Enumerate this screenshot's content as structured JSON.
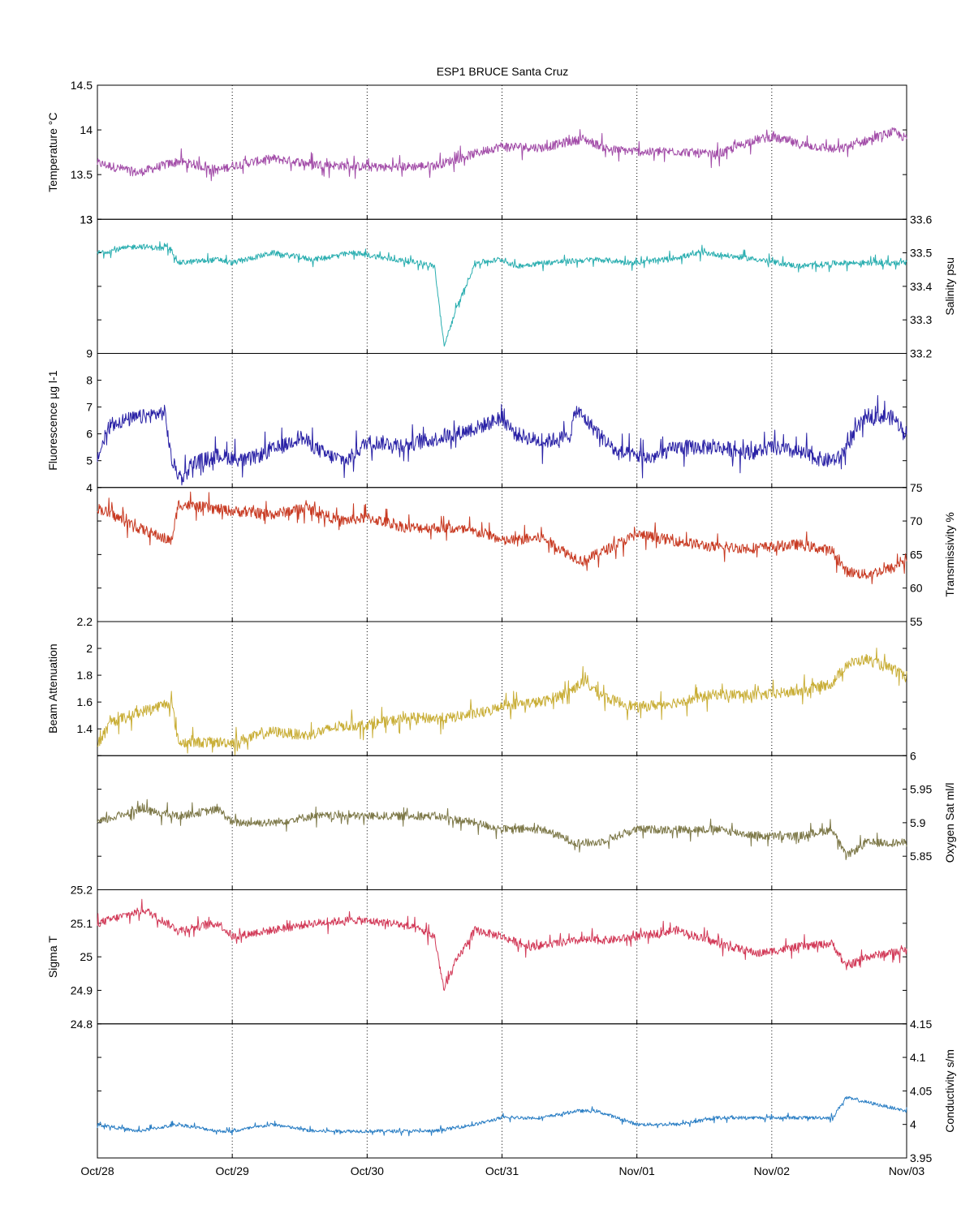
{
  "title": "ESP1 BRUCE Santa Cruz",
  "chart_data": [
    {
      "type": "line",
      "ylabel": "Temperature °C",
      "y_axis_side": "left",
      "ylim": [
        13,
        14.5
      ],
      "yticks": [
        13,
        13.5,
        14,
        14.5
      ],
      "ytick_labels": [
        "13",
        "13.5",
        "14",
        "14.5"
      ],
      "color": "#a24ca8",
      "noise": 0.05,
      "x": [
        0,
        0.3,
        0.6,
        0.9,
        1.0,
        1.3,
        1.6,
        1.8,
        2.1,
        2.5,
        2.9,
        3.0,
        3.3,
        3.6,
        3.8,
        4.1,
        4.3,
        4.6,
        4.85,
        5.0,
        5.2,
        5.5,
        5.9,
        6.0
      ],
      "values": [
        13.63,
        13.52,
        13.65,
        13.55,
        13.6,
        13.68,
        13.62,
        13.6,
        13.58,
        13.6,
        13.78,
        13.82,
        13.8,
        13.9,
        13.78,
        13.75,
        13.76,
        13.72,
        13.88,
        13.92,
        13.84,
        13.78,
        13.98,
        13.9
      ],
      "grid_x": true
    },
    {
      "type": "line",
      "ylabel": "Salinity psu",
      "y_axis_side": "right",
      "ylim": [
        33.2,
        33.6
      ],
      "yticks": [
        33.2,
        33.3,
        33.4,
        33.5,
        33.6
      ],
      "ytick_labels": [
        "33.2",
        "33.3",
        "33.4",
        "33.5",
        "33.6"
      ],
      "top_left_label": "13",
      "color": "#2aaeb0",
      "noise": 0.008,
      "x": [
        0,
        0.3,
        0.55,
        0.6,
        0.9,
        1.0,
        1.3,
        1.6,
        1.9,
        2.2,
        2.4,
        2.5,
        2.57,
        2.65,
        2.8,
        3.0,
        3.1,
        3.3,
        3.7,
        4.0,
        4.2,
        4.5,
        4.9,
        5.2,
        5.5,
        5.9,
        6.0
      ],
      "values": [
        33.5,
        33.52,
        33.51,
        33.47,
        33.48,
        33.47,
        33.5,
        33.48,
        33.5,
        33.48,
        33.47,
        33.46,
        33.22,
        33.32,
        33.47,
        33.48,
        33.46,
        33.47,
        33.48,
        33.47,
        33.48,
        33.5,
        33.48,
        33.46,
        33.47,
        33.47,
        33.47
      ],
      "grid_x": true
    },
    {
      "type": "line",
      "ylabel": "Fluorescence µg l-1",
      "y_axis_side": "left",
      "ylim": [
        4,
        9
      ],
      "yticks": [
        4,
        5,
        6,
        7,
        8
      ],
      "ytick_labels": [
        "4",
        "5",
        "6",
        "7",
        "8"
      ],
      "top_left_label": "9",
      "color": "#2a22a6",
      "noise": 0.28,
      "x": [
        0,
        0.1,
        0.3,
        0.5,
        0.55,
        0.62,
        0.7,
        0.9,
        1.1,
        1.4,
        1.5,
        1.7,
        1.85,
        2.0,
        2.3,
        2.5,
        2.8,
        3.0,
        3.1,
        3.3,
        3.5,
        3.55,
        3.7,
        3.85,
        4.1,
        4.3,
        4.6,
        4.85,
        5.0,
        5.2,
        5.4,
        5.5,
        5.7,
        5.9,
        6.0
      ],
      "values": [
        5.1,
        6.4,
        6.6,
        6.8,
        5.0,
        4.3,
        4.9,
        5.2,
        5.0,
        5.6,
        5.9,
        5.2,
        5.0,
        5.7,
        5.6,
        5.8,
        6.2,
        6.6,
        6.0,
        5.7,
        5.9,
        6.9,
        6.1,
        5.3,
        5.1,
        5.5,
        5.5,
        5.3,
        5.5,
        5.3,
        5.0,
        5.1,
        6.7,
        6.6,
        6.0
      ],
      "grid_x": true
    },
    {
      "type": "line",
      "ylabel": "Transmissivity %",
      "y_axis_side": "right",
      "ylim": [
        55,
        75
      ],
      "yticks": [
        55,
        60,
        65,
        70,
        75
      ],
      "ytick_labels": [
        "55",
        "60",
        "65",
        "70",
        "75"
      ],
      "color": "#c83a22",
      "noise": 0.8,
      "x": [
        0,
        0.3,
        0.55,
        0.6,
        1.0,
        1.3,
        1.55,
        1.8,
        2.0,
        2.3,
        2.6,
        2.9,
        3.0,
        3.3,
        3.5,
        3.6,
        3.8,
        4.0,
        4.3,
        4.6,
        4.9,
        5.2,
        5.45,
        5.55,
        5.7,
        5.9,
        6.0
      ],
      "values": [
        72,
        69,
        67,
        72.5,
        71.5,
        71,
        72,
        70,
        70.5,
        69,
        69,
        68,
        67,
        67.5,
        65,
        64,
        66,
        68,
        67,
        66,
        66,
        66.5,
        65.5,
        62.5,
        62,
        63,
        64.5
      ],
      "grid_x": true
    },
    {
      "type": "line",
      "ylabel": "Beam Attenuation",
      "y_axis_side": "left",
      "ylim": [
        1.2,
        2.2
      ],
      "yticks": [
        1.4,
        1.6,
        1.8,
        2.0
      ],
      "ytick_labels": [
        "1.4",
        "1.6",
        "1.8",
        "2"
      ],
      "top_left_label": "2.2",
      "color": "#c9ae37",
      "noise": 0.04,
      "x": [
        0,
        0.1,
        0.3,
        0.55,
        0.6,
        1.0,
        1.3,
        1.55,
        1.8,
        2.0,
        2.3,
        2.6,
        2.9,
        3.0,
        3.3,
        3.5,
        3.6,
        3.8,
        4.0,
        4.3,
        4.6,
        4.9,
        5.2,
        5.45,
        5.55,
        5.7,
        5.9,
        6.0
      ],
      "values": [
        1.28,
        1.45,
        1.52,
        1.6,
        1.3,
        1.3,
        1.38,
        1.35,
        1.42,
        1.43,
        1.48,
        1.48,
        1.53,
        1.58,
        1.6,
        1.68,
        1.75,
        1.62,
        1.56,
        1.6,
        1.66,
        1.65,
        1.68,
        1.74,
        1.88,
        1.92,
        1.84,
        1.78
      ],
      "grid_x": true
    },
    {
      "type": "line",
      "ylabel": "Oxygen Sat ml/l",
      "y_axis_side": "right",
      "ylim": [
        5.8,
        6.0
      ],
      "yticks": [
        5.85,
        5.9,
        5.95,
        6.0
      ],
      "ytick_labels": [
        "5.85",
        "5.9",
        "5.95",
        "6"
      ],
      "color": "#7d7848",
      "noise": 0.006,
      "x": [
        0,
        0.3,
        0.6,
        0.9,
        1.0,
        1.3,
        1.6,
        1.9,
        2.2,
        2.5,
        2.8,
        3.0,
        3.3,
        3.55,
        3.7,
        4.0,
        4.3,
        4.6,
        4.9,
        5.2,
        5.45,
        5.55,
        5.7,
        6.0
      ],
      "values": [
        5.9,
        5.92,
        5.91,
        5.92,
        5.9,
        5.9,
        5.91,
        5.91,
        5.91,
        5.91,
        5.9,
        5.89,
        5.89,
        5.87,
        5.87,
        5.89,
        5.89,
        5.89,
        5.88,
        5.88,
        5.89,
        5.85,
        5.87,
        5.87
      ],
      "grid_x": true
    },
    {
      "type": "line",
      "ylabel": "Sigma T",
      "y_axis_side": "left",
      "ylim": [
        24.8,
        25.2
      ],
      "yticks": [
        24.9,
        25.0,
        25.1
      ],
      "ytick_labels": [
        "24.9",
        "25",
        "25.1"
      ],
      "top_left_label": "25.2",
      "color": "#d23a58",
      "noise": 0.012,
      "x": [
        0,
        0.35,
        0.6,
        0.9,
        1.0,
        1.3,
        1.6,
        1.9,
        2.2,
        2.4,
        2.5,
        2.57,
        2.65,
        2.8,
        3.0,
        3.2,
        3.4,
        3.6,
        3.8,
        4.0,
        4.3,
        4.6,
        4.9,
        5.2,
        5.45,
        5.55,
        5.7,
        6.0
      ],
      "values": [
        25.1,
        25.14,
        25.08,
        25.1,
        25.06,
        25.08,
        25.1,
        25.11,
        25.1,
        25.08,
        25.06,
        24.9,
        24.98,
        25.08,
        25.06,
        25.03,
        25.04,
        25.05,
        25.05,
        25.06,
        25.08,
        25.04,
        25.01,
        25.03,
        25.04,
        24.97,
        25.0,
        25.02
      ],
      "grid_x": true
    },
    {
      "type": "line",
      "ylabel": "Conductivity s/m",
      "y_axis_side": "right",
      "ylim": [
        3.95,
        4.15
      ],
      "yticks": [
        3.95,
        4.0,
        4.05,
        4.1,
        4.15
      ],
      "ytick_labels": [
        "3.95",
        "4",
        "4.05",
        "4.1",
        "4.15"
      ],
      "top_left_label": "24.8",
      "color": "#2a7ec4",
      "noise": 0.0025,
      "x": [
        0,
        0.3,
        0.6,
        0.9,
        1.0,
        1.3,
        1.6,
        1.9,
        2.2,
        2.5,
        2.8,
        3.0,
        3.3,
        3.55,
        3.7,
        4.0,
        4.3,
        4.6,
        4.9,
        5.2,
        5.45,
        5.55,
        6.0
      ],
      "values": [
        4.0,
        3.99,
        4.0,
        3.99,
        3.99,
        4.0,
        3.99,
        3.99,
        3.99,
        3.99,
        4.0,
        4.01,
        4.01,
        4.02,
        4.02,
        4.0,
        4.0,
        4.01,
        4.01,
        4.01,
        4.01,
        4.04,
        4.02
      ],
      "xticks": [
        0,
        1,
        2,
        3,
        4,
        5,
        6
      ],
      "xtick_labels": [
        "Oct/28",
        "Oct/29",
        "Oct/30",
        "Oct/31",
        "Nov/01",
        "Nov/02",
        "Nov/03"
      ],
      "grid_x": true
    }
  ]
}
